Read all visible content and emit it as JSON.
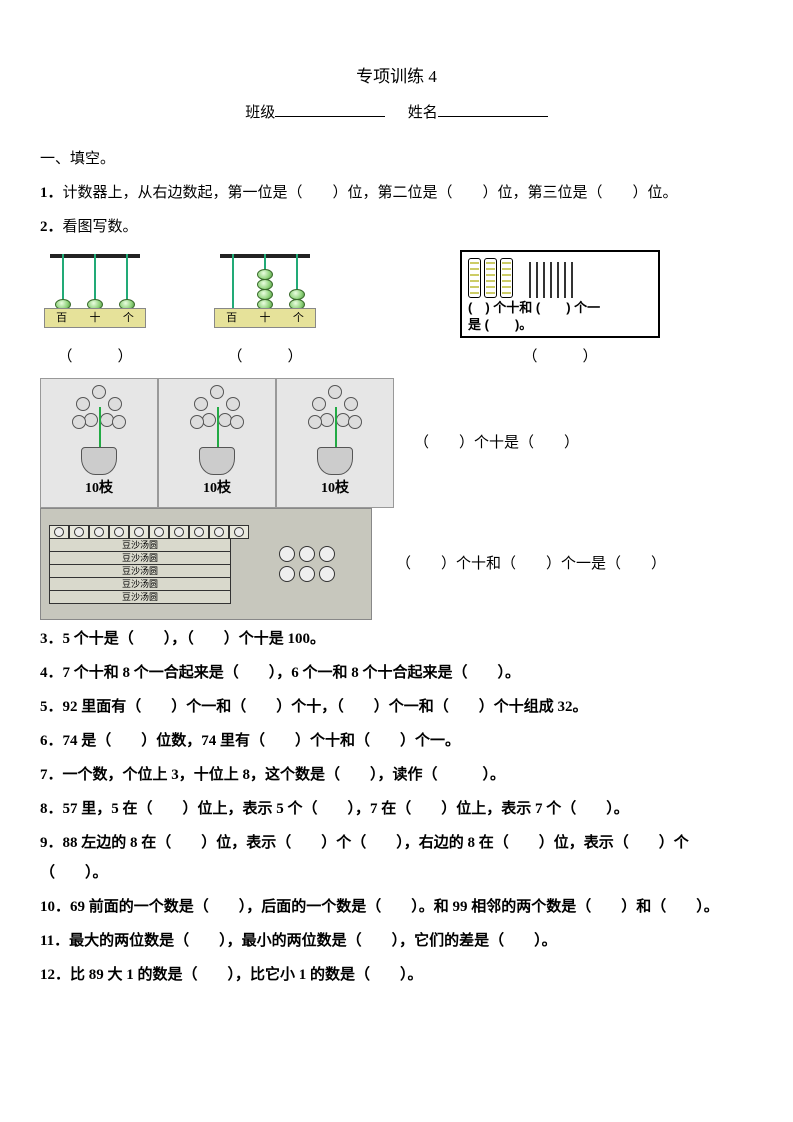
{
  "title": "专项训练 4",
  "header": {
    "class_label": "班级",
    "name_label": "姓名"
  },
  "section1": "一、填空。",
  "q1": {
    "num": "1．",
    "text": "计数器上，从右边数起，第一位是（　　）位，第二位是（　　）位，第三位是（　　）位。"
  },
  "q2": {
    "num": "2．",
    "text": "看图写数。"
  },
  "abacus_labels": [
    "百",
    "十",
    "个"
  ],
  "abacus1": {
    "beads": [
      1,
      1,
      1
    ]
  },
  "abacus2": {
    "beads": [
      0,
      4,
      2
    ]
  },
  "bundle": {
    "line1": "(　) 个十和 (　　) 个一",
    "line2": "是 (　　)。",
    "tens": 3,
    "ones": 7
  },
  "paren": "（　　　）",
  "vase_label": "10枝",
  "vase_count": 3,
  "vase_tail": "（　　）个十是（　　）",
  "tangyuan": {
    "box_label": "豆沙汤圆",
    "rows": 5,
    "cols": 10,
    "loose": 6,
    "tail": "（　　）个十和（　　）个一是（　　）"
  },
  "q3": "3．5 个十是（　　），（　　）个十是 100。",
  "q4": "4．7 个十和 8 个一合起来是（　　），6 个一和 8 个十合起来是（　　）。",
  "q5": "5．92 里面有（　　）个一和（　　）个十，（　　）个一和（　　）个十组成 32。",
  "q6": "6．74 是（　　）位数，74 里有（　　）个十和（　　）个一。",
  "q7": "7．一个数，个位上 3，十位上 8，这个数是（　　），读作（　　　）。",
  "q8": "8．57 里，5 在（　　）位上，表示 5 个（　　），7 在（　　）位上，表示 7 个（　　）。",
  "q9": "9．88 左边的 8 在（　　）位，表示（　　）个（　　），右边的 8 在（　　）位，表示（　　）个（　　）。",
  "q10": "10．69 前面的一个数是（　　），后面的一个数是（　　）。和 99 相邻的两个数是（　　）和（　　）。",
  "q11": "11．最大的两位数是（　　），最小的两位数是（　　），它们的差是（　　）。",
  "q12": "12．比 89 大 1 的数是（　　），比它小 1 的数是（　　）。"
}
